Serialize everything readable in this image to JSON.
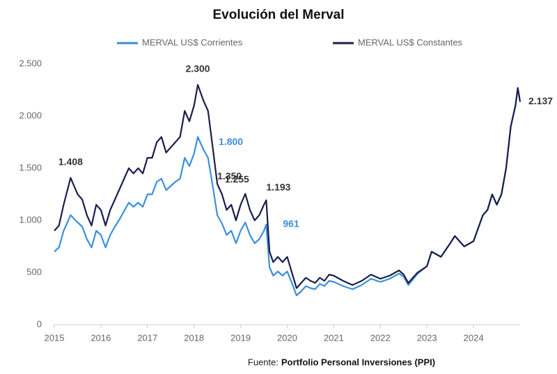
{
  "chart_data": {
    "type": "line",
    "title": "Evolución del Merval",
    "source": {
      "prefix": "Fuente:",
      "text": "Portfolio Personal Inversiones (PPI)"
    },
    "x": [
      2015.0,
      2015.1,
      2015.2,
      2015.35,
      2015.5,
      2015.6,
      2015.7,
      2015.8,
      2015.9,
      2016.0,
      2016.1,
      2016.2,
      2016.3,
      2016.4,
      2016.5,
      2016.6,
      2016.7,
      2016.8,
      2016.9,
      2017.0,
      2017.1,
      2017.2,
      2017.3,
      2017.4,
      2017.5,
      2017.6,
      2017.7,
      2017.8,
      2017.9,
      2018.0,
      2018.08,
      2018.2,
      2018.3,
      2018.4,
      2018.5,
      2018.6,
      2018.7,
      2018.8,
      2018.9,
      2019.0,
      2019.1,
      2019.2,
      2019.3,
      2019.4,
      2019.5,
      2019.55,
      2019.62,
      2019.7,
      2019.8,
      2019.9,
      2020.0,
      2020.1,
      2020.2,
      2020.3,
      2020.4,
      2020.5,
      2020.6,
      2020.7,
      2020.8,
      2020.9,
      2021.0,
      2021.2,
      2021.4,
      2021.6,
      2021.8,
      2022.0,
      2022.2,
      2022.4,
      2022.5,
      2022.6,
      2022.8,
      2023.0,
      2023.1,
      2023.3,
      2023.5,
      2023.6,
      2023.8,
      2024.0,
      2024.2,
      2024.3,
      2024.4,
      2024.5,
      2024.6,
      2024.7,
      2024.8,
      2024.9,
      2024.95,
      2025.0
    ],
    "series": [
      {
        "name": "MERVAL US$ Corrientes",
        "color": "#3a8fdc",
        "values": [
          700,
          740,
          900,
          1050,
          980,
          940,
          820,
          740,
          900,
          860,
          740,
          860,
          940,
          1010,
          1090,
          1170,
          1130,
          1170,
          1130,
          1250,
          1250,
          1370,
          1400,
          1290,
          1330,
          1370,
          1400,
          1600,
          1520,
          1640,
          1800,
          1680,
          1600,
          1330,
          1050,
          970,
          860,
          900,
          780,
          900,
          980,
          860,
          780,
          820,
          900,
          961,
          550,
          470,
          510,
          470,
          510,
          400,
          280,
          320,
          370,
          350,
          340,
          390,
          370,
          420,
          410,
          370,
          340,
          380,
          440,
          410,
          440,
          490,
          460,
          380,
          490,
          560,
          700,
          650,
          780,
          850,
          750,
          800,
          1050,
          1100,
          1250,
          1150,
          1250,
          1500,
          1900,
          2100,
          2270,
          2137
        ]
      },
      {
        "name": "MERVAL US$ Constantes",
        "color": "#1b1f4a",
        "values": [
          900,
          950,
          1150,
          1408,
          1250,
          1200,
          1050,
          950,
          1150,
          1100,
          950,
          1100,
          1200,
          1300,
          1400,
          1500,
          1450,
          1500,
          1450,
          1600,
          1600,
          1750,
          1800,
          1650,
          1700,
          1750,
          1800,
          2050,
          1950,
          2100,
          2300,
          2150,
          2050,
          1700,
          1350,
          1250,
          1100,
          1150,
          1000,
          1150,
          1255,
          1100,
          1000,
          1050,
          1150,
          1193,
          700,
          600,
          650,
          600,
          650,
          500,
          350,
          400,
          450,
          420,
          400,
          450,
          420,
          480,
          470,
          420,
          380,
          420,
          480,
          440,
          470,
          520,
          480,
          400,
          500,
          560,
          700,
          650,
          780,
          850,
          750,
          800,
          1050,
          1100,
          1250,
          1150,
          1250,
          1500,
          1900,
          2100,
          2270,
          2137
        ]
      }
    ],
    "annotations": [
      {
        "series": 1,
        "x": 2015.35,
        "y": 1408,
        "label": "1.408"
      },
      {
        "series": 1,
        "x": 2018.08,
        "y": 2300,
        "label": "2.300"
      },
      {
        "series": 0,
        "x": 2018.08,
        "y": 1800,
        "label": "1.800"
      },
      {
        "series": 1,
        "x": 2018.5,
        "y": 1350,
        "label": "1.350"
      },
      {
        "series": 1,
        "x": 2019.1,
        "y": 1255,
        "label": "1.255"
      },
      {
        "series": 1,
        "x": 2019.55,
        "y": 1193,
        "label": "1.193"
      },
      {
        "series": 0,
        "x": 2019.55,
        "y": 961,
        "label": "961"
      },
      {
        "series": 1,
        "x": 2025.0,
        "y": 2137,
        "label": "2.137"
      }
    ],
    "xlim": [
      2015,
      2025
    ],
    "xticks": [
      2015,
      2016,
      2017,
      2018,
      2019,
      2020,
      2021,
      2022,
      2023,
      2024
    ],
    "ylim": [
      0,
      2500
    ],
    "yticks": [
      0,
      500,
      {
        "value": 1000,
        "label": "1.000"
      },
      {
        "value": 1500,
        "label": "1.500"
      },
      {
        "value": 2000,
        "label": "2.000"
      },
      {
        "value": 2500,
        "label": "2.500"
      }
    ],
    "grid": false
  }
}
